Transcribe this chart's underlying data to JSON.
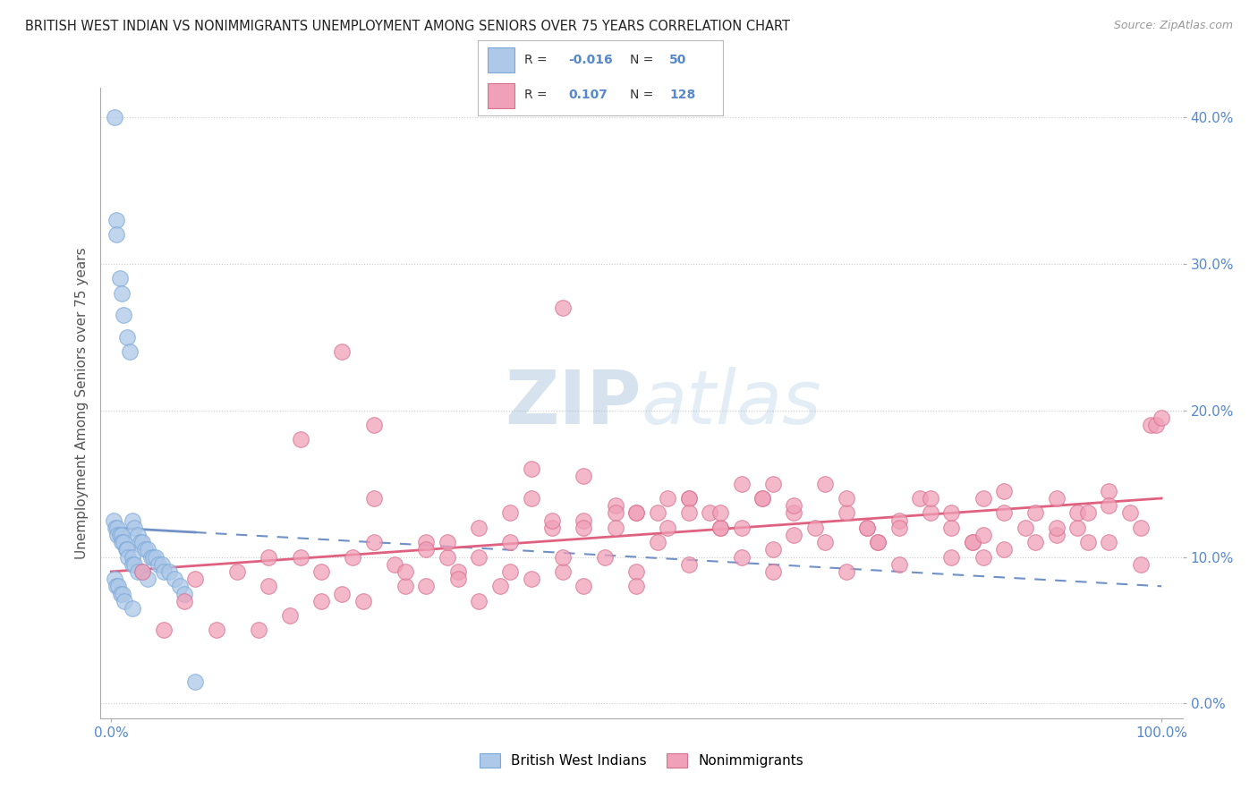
{
  "title": "BRITISH WEST INDIAN VS NONIMMIGRANTS UNEMPLOYMENT AMONG SENIORS OVER 75 YEARS CORRELATION CHART",
  "source": "Source: ZipAtlas.com",
  "ylabel": "Unemployment Among Seniors over 75 years",
  "ytick_labels": [
    "0.0%",
    "10.0%",
    "20.0%",
    "30.0%",
    "40.0%"
  ],
  "ytick_values": [
    0,
    10,
    20,
    30,
    40
  ],
  "xtick_labels": [
    "0.0%",
    "100.0%"
  ],
  "xtick_values": [
    0,
    100
  ],
  "xlim": [
    -1,
    102
  ],
  "ylim": [
    -1,
    42
  ],
  "color_blue": "#adc8e8",
  "color_blue_edge": "#7aA8d8",
  "color_pink": "#f0a0b8",
  "color_pink_edge": "#d87090",
  "color_trend_blue": "#7090c8",
  "color_trend_pink": "#e06080",
  "watermark_color": "#c8ddf0",
  "background_color": "#ffffff",
  "grid_color": "#cccccc",
  "title_color": "#222222",
  "source_color": "#999999",
  "tick_color": "#5588cc",
  "bwi_x": [
    0.3,
    0.5,
    0.5,
    0.8,
    1.0,
    1.2,
    1.5,
    1.8,
    2.0,
    2.2,
    2.5,
    2.8,
    3.0,
    3.2,
    3.5,
    3.8,
    4.0,
    4.2,
    4.5,
    4.8,
    5.0,
    5.5,
    6.0,
    6.5,
    7.0,
    0.2,
    0.4,
    0.6,
    0.6,
    0.8,
    1.0,
    1.0,
    1.2,
    1.4,
    1.5,
    1.6,
    2.0,
    2.0,
    2.2,
    2.5,
    3.0,
    3.5,
    0.3,
    0.5,
    0.7,
    0.9,
    1.1,
    1.3,
    2.0,
    8.0
  ],
  "bwi_y": [
    40.0,
    33.0,
    32.0,
    29.0,
    28.0,
    26.5,
    25.0,
    24.0,
    12.5,
    12.0,
    11.5,
    11.0,
    11.0,
    10.5,
    10.5,
    10.0,
    10.0,
    10.0,
    9.5,
    9.5,
    9.0,
    9.0,
    8.5,
    8.0,
    7.5,
    12.5,
    12.0,
    12.0,
    11.5,
    11.5,
    11.5,
    11.0,
    11.0,
    10.5,
    10.5,
    10.0,
    10.0,
    9.5,
    9.5,
    9.0,
    9.0,
    8.5,
    8.5,
    8.0,
    8.0,
    7.5,
    7.5,
    7.0,
    6.5,
    1.5
  ],
  "nonimm_x": [
    3.0,
    5.0,
    7.0,
    8.0,
    10.0,
    12.0,
    14.0,
    15.0,
    17.0,
    18.0,
    20.0,
    22.0,
    22.0,
    24.0,
    25.0,
    27.0,
    28.0,
    30.0,
    30.0,
    32.0,
    33.0,
    35.0,
    35.0,
    37.0,
    38.0,
    40.0,
    40.0,
    42.0,
    43.0,
    45.0,
    45.0,
    47.0,
    48.0,
    50.0,
    50.0,
    50.0,
    52.0,
    53.0,
    55.0,
    55.0,
    57.0,
    58.0,
    60.0,
    60.0,
    62.0,
    63.0,
    65.0,
    65.0,
    67.0,
    68.0,
    70.0,
    70.0,
    72.0,
    73.0,
    75.0,
    75.0,
    77.0,
    78.0,
    80.0,
    80.0,
    82.0,
    83.0,
    85.0,
    85.0,
    87.0,
    88.0,
    90.0,
    90.0,
    92.0,
    93.0,
    95.0,
    95.0,
    97.0,
    98.0,
    99.0,
    99.5,
    100.0,
    18.0,
    28.0,
    38.0,
    48.0,
    58.0,
    68.0,
    78.0,
    88.0,
    98.0,
    25.0,
    35.0,
    45.0,
    55.0,
    65.0,
    75.0,
    85.0,
    95.0,
    30.0,
    40.0,
    50.0,
    60.0,
    70.0,
    80.0,
    90.0,
    20.0,
    32.0,
    42.0,
    52.0,
    62.0,
    72.0,
    82.0,
    92.0,
    15.0,
    25.0,
    45.0,
    55.0,
    33.0,
    43.0,
    53.0,
    63.0,
    73.0,
    83.0,
    93.0,
    38.0,
    48.0,
    58.0,
    23.0,
    43.0,
    63.0,
    83.0
  ],
  "nonimm_y": [
    9.0,
    5.0,
    7.0,
    8.5,
    5.0,
    9.0,
    5.0,
    8.0,
    6.0,
    18.0,
    7.0,
    7.5,
    24.0,
    7.0,
    19.0,
    9.5,
    8.0,
    11.0,
    8.0,
    10.0,
    9.0,
    12.0,
    7.0,
    8.0,
    13.0,
    8.5,
    16.0,
    12.0,
    9.0,
    12.5,
    8.0,
    10.0,
    13.5,
    9.0,
    13.0,
    8.0,
    11.0,
    14.0,
    14.0,
    9.5,
    13.0,
    12.0,
    15.0,
    10.0,
    14.0,
    9.0,
    11.5,
    13.0,
    12.0,
    15.0,
    13.0,
    9.0,
    12.0,
    11.0,
    12.5,
    9.5,
    14.0,
    13.0,
    12.0,
    10.0,
    11.0,
    14.0,
    13.0,
    10.5,
    12.0,
    11.0,
    14.0,
    11.5,
    12.0,
    11.0,
    14.5,
    11.0,
    13.0,
    12.0,
    19.0,
    19.0,
    19.5,
    10.0,
    9.0,
    11.0,
    13.0,
    12.0,
    11.0,
    14.0,
    13.0,
    9.5,
    11.0,
    10.0,
    12.0,
    14.0,
    13.5,
    12.0,
    14.5,
    13.5,
    10.5,
    14.0,
    13.0,
    12.0,
    14.0,
    13.0,
    12.0,
    9.0,
    11.0,
    12.5,
    13.0,
    14.0,
    12.0,
    11.0,
    13.0,
    10.0,
    14.0,
    15.5,
    13.0,
    8.5,
    10.0,
    12.0,
    10.5,
    11.0,
    11.5,
    13.0,
    9.0,
    12.0,
    13.0,
    10.0,
    27.0,
    15.0,
    10.0
  ]
}
